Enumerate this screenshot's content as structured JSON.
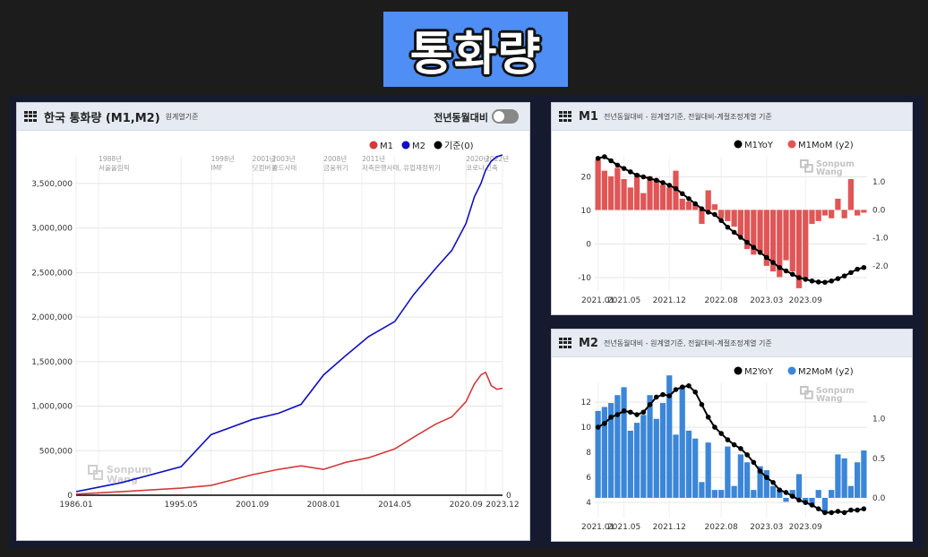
{
  "page_title": "통화량",
  "left_panel": {
    "title": "한국 통화량 (M1,M2)",
    "subtitle": "원계열기준",
    "toggle_label": "전년동월대비",
    "toggle_on": false
  },
  "m1_panel": {
    "title": "M1",
    "subtitle": "전년동월대비 - 원계열기준, 전월대비-계절조정계열 기준"
  },
  "m2_panel": {
    "title": "M2",
    "subtitle": "전년동월대비 - 원계열기준, 전월대비-계절조정계열 기준"
  },
  "watermark": [
    "Sonpum",
    "Wang"
  ],
  "colors": {
    "m1": "#d43a3a",
    "m2": "#1010c0",
    "m1_bar": "#e05555",
    "m2_bar": "#3b86d8",
    "line": "#000000"
  },
  "chart_data": [
    {
      "type": "line",
      "x_tick_labels": [
        "1986.01",
        "1995.05",
        "2001.09",
        "2008.01",
        "2014.05",
        "2020.09",
        "2023.12"
      ],
      "xlim": [
        "1986.01",
        "2023.12"
      ],
      "ylim": [
        0,
        3800000
      ],
      "y_ticks": [
        0,
        500000,
        1000000,
        1500000,
        2000000,
        2500000,
        3000000,
        3500000
      ],
      "y_tick_labels": [
        "0",
        "500,000",
        "1,000,000",
        "1,500,000",
        "2,000,000",
        "2,500,000",
        "3,000,000",
        "3,500,000"
      ],
      "right_tick_label": "0",
      "grid": true,
      "legend": {
        "position": "top-right",
        "entries": [
          "M1",
          "M2",
          "기준(0)"
        ]
      },
      "series": [
        {
          "name": "M1",
          "x": [
            "1986.01",
            "1990.01",
            "1995.05",
            "1998.01",
            "2001.09",
            "2004.01",
            "2006.01",
            "2008.01",
            "2010.01",
            "2012.01",
            "2014.05",
            "2016.01",
            "2018.01",
            "2019.06",
            "2020.09",
            "2021.06",
            "2022.01",
            "2022.06",
            "2022.12",
            "2023.06",
            "2023.12"
          ],
          "y": [
            12000,
            40000,
            80000,
            110000,
            230000,
            290000,
            330000,
            290000,
            370000,
            420000,
            520000,
            650000,
            800000,
            880000,
            1050000,
            1250000,
            1350000,
            1380000,
            1230000,
            1190000,
            1200000
          ]
        },
        {
          "name": "M2",
          "x": [
            "1986.01",
            "1990.01",
            "1995.05",
            "1998.01",
            "2001.09",
            "2004.01",
            "2006.01",
            "2008.01",
            "2010.01",
            "2012.01",
            "2014.05",
            "2016.01",
            "2018.01",
            "2019.06",
            "2020.09",
            "2021.06",
            "2022.01",
            "2022.06",
            "2022.12",
            "2023.06",
            "2023.12"
          ],
          "y": [
            40000,
            140000,
            320000,
            680000,
            850000,
            920000,
            1020000,
            1350000,
            1570000,
            1780000,
            1950000,
            2250000,
            2550000,
            2750000,
            3050000,
            3350000,
            3500000,
            3650000,
            3750000,
            3800000,
            3820000
          ]
        }
      ],
      "annotations": [
        {
          "x": "1988.01",
          "lines": [
            "1988년",
            "서울올림픽"
          ]
        },
        {
          "x": "1998.01",
          "lines": [
            "1998년",
            "IMF"
          ]
        },
        {
          "x": "2001.09",
          "lines": [
            "2001년",
            "닷컴버블"
          ]
        },
        {
          "x": "2003.06",
          "lines": [
            "2003년",
            "카드사태"
          ]
        },
        {
          "x": "2008.01",
          "lines": [
            "2008년",
            "금융위기"
          ]
        },
        {
          "x": "2011.06",
          "lines": [
            "2011년",
            "저축은행사태, 유럽재정위기"
          ]
        },
        {
          "x": "2020.09",
          "lines": [
            "2020년",
            "코로나"
          ]
        },
        {
          "x": "2022.06",
          "lines": [
            "2022년",
            "긴축"
          ]
        }
      ]
    },
    {
      "type": "bar",
      "x_tick_labels": [
        "2021.01",
        "2021.05",
        "2021.12",
        "2022.08",
        "2023.03",
        "2023.09"
      ],
      "ylim": [
        -14,
        26
      ],
      "y_ticks": [
        -10,
        0,
        10,
        20
      ],
      "y_tick_labels": [
        "-10",
        "0",
        "10",
        "20"
      ],
      "y2lim": [
        -2.9,
        1.9
      ],
      "y2_ticks": [
        -2.0,
        -1.0,
        0.0,
        1.0
      ],
      "y2_tick_labels": [
        "-2.0",
        "-1.0",
        "0.0",
        "1.0"
      ],
      "grid": true,
      "legend": {
        "position": "top-right",
        "entries": [
          "M1YoY",
          "M1MoM (y2)"
        ]
      },
      "series": [
        {
          "name": "M1YoY",
          "type": "line",
          "values": [
            25.5,
            26.0,
            24.8,
            23.5,
            22.5,
            21.5,
            20.5,
            20.0,
            19.5,
            19.0,
            18.3,
            17.5,
            16.5,
            15.0,
            13.5,
            12.0,
            10.5,
            9.5,
            8.8,
            7.0,
            5.0,
            3.5,
            2.0,
            0.5,
            -1.0,
            -2.5,
            -4.0,
            -5.5,
            -7.0,
            -8.0,
            -9.0,
            -10.0,
            -10.5,
            -11.0,
            -11.3,
            -11.4,
            -11.0,
            -10.3,
            -9.5,
            -8.5,
            -7.5,
            -7.0
          ]
        },
        {
          "name": "M1MoM (y2)",
          "type": "bar",
          "values": [
            1.8,
            1.4,
            1.2,
            1.5,
            1.1,
            0.8,
            1.3,
            0.6,
            1.2,
            1.1,
            0.9,
            0.8,
            1.4,
            0.4,
            0.3,
            0.2,
            -0.5,
            0.7,
            0.2,
            -0.3,
            -0.4,
            -0.6,
            -0.9,
            -1.4,
            -1.6,
            -1.5,
            -2.0,
            -2.2,
            -2.4,
            -1.8,
            -2.2,
            -2.8,
            -2.5,
            -0.5,
            -0.4,
            -0.2,
            -0.3,
            0.4,
            -0.3,
            1.1,
            -0.2,
            -0.1
          ]
        }
      ]
    },
    {
      "type": "bar",
      "x_tick_labels": [
        "2021.01",
        "2021.05",
        "2021.12",
        "2022.08",
        "2023.03",
        "2023.09"
      ],
      "ylim": [
        2.8,
        13.5
      ],
      "y_ticks": [
        4,
        6,
        8,
        10,
        12
      ],
      "y_tick_labels": [
        "4",
        "6",
        "8",
        "10",
        "12"
      ],
      "y2lim": [
        -0.25,
        1.45
      ],
      "y2_ticks": [
        0.0,
        0.5,
        1.0
      ],
      "y2_tick_labels": [
        "0.0",
        "0.5",
        "1.0"
      ],
      "grid": true,
      "legend": {
        "position": "top-right",
        "entries": [
          "M2YoY",
          "M2MoM (y2)"
        ]
      },
      "series": [
        {
          "name": "M2YoY",
          "type": "line",
          "values": [
            10.0,
            10.3,
            10.8,
            11.0,
            11.3,
            11.2,
            11.0,
            11.2,
            11.8,
            12.4,
            12.6,
            12.5,
            13.0,
            13.2,
            13.3,
            12.8,
            11.8,
            10.8,
            10.0,
            9.5,
            9.0,
            8.6,
            8.3,
            7.8,
            7.2,
            6.5,
            6.0,
            5.6,
            5.0,
            4.8,
            4.5,
            4.2,
            4.0,
            3.8,
            3.5,
            3.2,
            3.2,
            3.3,
            3.2,
            3.4,
            3.4,
            3.5
          ]
        },
        {
          "name": "M2MoM (y2)",
          "type": "bar",
          "values": [
            1.1,
            1.15,
            1.2,
            1.3,
            1.4,
            0.85,
            0.95,
            1.05,
            1.3,
            1.0,
            1.2,
            1.55,
            0.8,
            1.4,
            0.85,
            0.75,
            0.2,
            0.7,
            0.1,
            0.1,
            0.65,
            0.15,
            0.55,
            0.45,
            0.1,
            0.4,
            0.35,
            0.15,
            0.1,
            -0.05,
            0.1,
            0.3,
            -0.05,
            -0.1,
            0.1,
            -0.2,
            0.1,
            0.55,
            0.5,
            0.15,
            0.45,
            0.6
          ]
        }
      ]
    }
  ]
}
